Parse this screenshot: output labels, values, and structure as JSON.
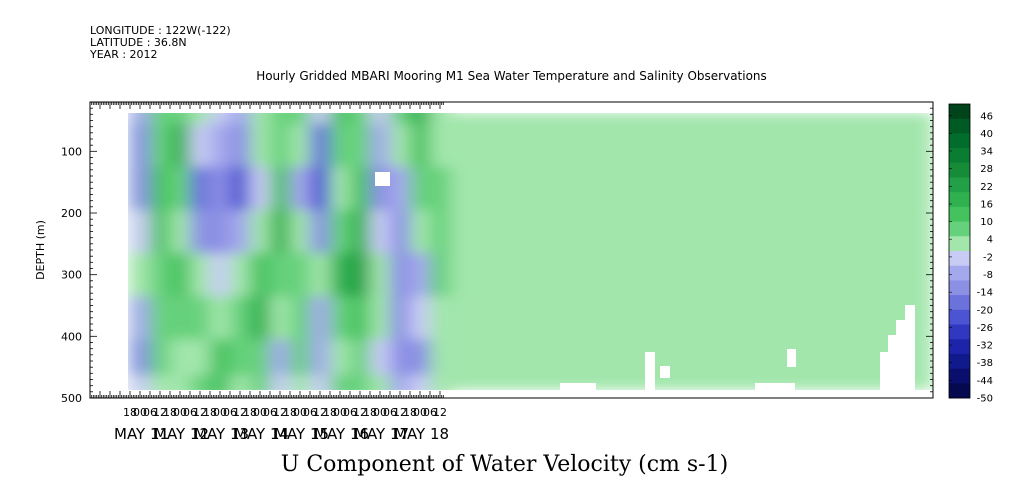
{
  "header": {
    "longitude": "LONGITUDE : 122W(-122)",
    "latitude": "LATITUDE : 36.8N",
    "year": "YEAR : 2012"
  },
  "chart_data": {
    "type": "heatmap",
    "title": "Hourly Gridded MBARI Mooring M1 Sea Water Temperature and Salinity Observations",
    "xlabel": "",
    "ylabel": "DEPTH (m)",
    "variable_label": "U Component of Water Velocity (cm s-1)",
    "ylim": [
      500,
      20
    ],
    "y_ticks": [
      100,
      200,
      300,
      400,
      500
    ],
    "hour_tick_labels": [
      "18",
      "00",
      "06",
      "12",
      "18",
      "00",
      "06",
      "12",
      "18",
      "00",
      "06",
      "12",
      "18",
      "00",
      "06",
      "12",
      "18",
      "00",
      "06",
      "12",
      "18",
      "00",
      "06",
      "12",
      "18",
      "00",
      "06",
      "12",
      "18",
      "00",
      "06",
      "12"
    ],
    "date_labels": [
      "MAY 11",
      "MAY 12",
      "MAY 13",
      "MAY 14",
      "MAY 15",
      "MAY 16",
      "MAY 17",
      "MAY 18"
    ],
    "colorbar": {
      "labels": [
        "46",
        "40",
        "34",
        "28",
        "22",
        "16",
        "10",
        "4",
        "-2",
        "-8",
        "-14",
        "-20",
        "-26",
        "-32",
        "-38",
        "-44",
        "-50"
      ],
      "colors": [
        "#00441b",
        "#005a24",
        "#006d2c",
        "#0a7d32",
        "#168c39",
        "#22a047",
        "#2fb14f",
        "#44c25e",
        "#66d17c",
        "#a2e6ac",
        "#c8ccf4",
        "#a4a8ec",
        "#8c90e4",
        "#6c72dc",
        "#4b54d2",
        "#3038c2",
        "#1e24aa",
        "#111a8c",
        "#0a0f6e",
        "#050a50"
      ]
    },
    "depth_levels": [
      20,
      90,
      160,
      230,
      300,
      370,
      440,
      485
    ],
    "time_start": "MAY 11 00",
    "time_step_hours": 12,
    "u_values": [
      [
        -8,
        6,
        10,
        2,
        0,
        -6,
        2,
        6,
        10,
        -4,
        14,
        6,
        -4,
        10,
        16,
        2
      ],
      [
        -12,
        10,
        16,
        -4,
        -6,
        -14,
        4,
        10,
        4,
        -16,
        8,
        10,
        -8,
        4,
        14,
        4
      ],
      [
        -10,
        14,
        8,
        -18,
        -14,
        -20,
        -4,
        12,
        -8,
        -22,
        4,
        14,
        -10,
        -6,
        10,
        8
      ],
      [
        -4,
        12,
        2,
        -14,
        -10,
        -8,
        4,
        16,
        2,
        -10,
        10,
        20,
        -4,
        -14,
        4,
        10
      ],
      [
        4,
        8,
        14,
        2,
        -4,
        2,
        12,
        8,
        10,
        2,
        16,
        22,
        4,
        -12,
        -8,
        6
      ],
      [
        -6,
        10,
        10,
        8,
        4,
        10,
        16,
        4,
        6,
        -6,
        8,
        14,
        2,
        -10,
        -4,
        2
      ],
      [
        -10,
        6,
        4,
        2,
        12,
        6,
        10,
        -6,
        8,
        -8,
        2,
        6,
        -4,
        -12,
        -14,
        4
      ],
      [
        -4,
        4,
        2,
        6,
        14,
        4,
        8,
        -4,
        4,
        -2,
        6,
        8,
        2,
        -8,
        -2,
        2
      ]
    ]
  }
}
